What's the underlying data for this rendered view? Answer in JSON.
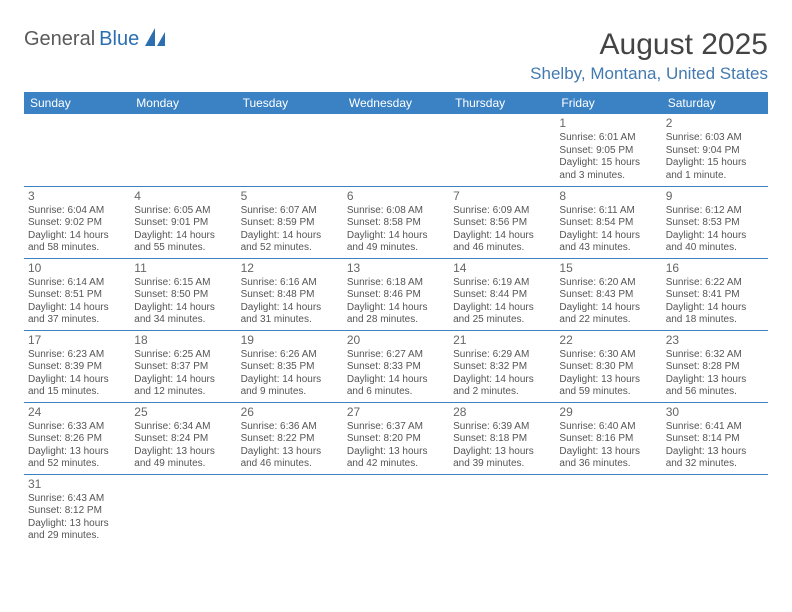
{
  "logo": {
    "general": "General",
    "blue": "Blue"
  },
  "title": "August 2025",
  "location": "Shelby, Montana, United States",
  "colors": {
    "headerBg": "#3b82c4",
    "headerText": "#ffffff",
    "rule": "#3b82c4",
    "text": "#555555",
    "title": "#444444",
    "locationColor": "#447ab0"
  },
  "dayHeaders": [
    "Sunday",
    "Monday",
    "Tuesday",
    "Wednesday",
    "Thursday",
    "Friday",
    "Saturday"
  ],
  "weeks": [
    [
      null,
      null,
      null,
      null,
      null,
      {
        "n": "1",
        "sr": "Sunrise: 6:01 AM",
        "ss": "Sunset: 9:05 PM",
        "dl": "Daylight: 15 hours and 3 minutes."
      },
      {
        "n": "2",
        "sr": "Sunrise: 6:03 AM",
        "ss": "Sunset: 9:04 PM",
        "dl": "Daylight: 15 hours and 1 minute."
      }
    ],
    [
      {
        "n": "3",
        "sr": "Sunrise: 6:04 AM",
        "ss": "Sunset: 9:02 PM",
        "dl": "Daylight: 14 hours and 58 minutes."
      },
      {
        "n": "4",
        "sr": "Sunrise: 6:05 AM",
        "ss": "Sunset: 9:01 PM",
        "dl": "Daylight: 14 hours and 55 minutes."
      },
      {
        "n": "5",
        "sr": "Sunrise: 6:07 AM",
        "ss": "Sunset: 8:59 PM",
        "dl": "Daylight: 14 hours and 52 minutes."
      },
      {
        "n": "6",
        "sr": "Sunrise: 6:08 AM",
        "ss": "Sunset: 8:58 PM",
        "dl": "Daylight: 14 hours and 49 minutes."
      },
      {
        "n": "7",
        "sr": "Sunrise: 6:09 AM",
        "ss": "Sunset: 8:56 PM",
        "dl": "Daylight: 14 hours and 46 minutes."
      },
      {
        "n": "8",
        "sr": "Sunrise: 6:11 AM",
        "ss": "Sunset: 8:54 PM",
        "dl": "Daylight: 14 hours and 43 minutes."
      },
      {
        "n": "9",
        "sr": "Sunrise: 6:12 AM",
        "ss": "Sunset: 8:53 PM",
        "dl": "Daylight: 14 hours and 40 minutes."
      }
    ],
    [
      {
        "n": "10",
        "sr": "Sunrise: 6:14 AM",
        "ss": "Sunset: 8:51 PM",
        "dl": "Daylight: 14 hours and 37 minutes."
      },
      {
        "n": "11",
        "sr": "Sunrise: 6:15 AM",
        "ss": "Sunset: 8:50 PM",
        "dl": "Daylight: 14 hours and 34 minutes."
      },
      {
        "n": "12",
        "sr": "Sunrise: 6:16 AM",
        "ss": "Sunset: 8:48 PM",
        "dl": "Daylight: 14 hours and 31 minutes."
      },
      {
        "n": "13",
        "sr": "Sunrise: 6:18 AM",
        "ss": "Sunset: 8:46 PM",
        "dl": "Daylight: 14 hours and 28 minutes."
      },
      {
        "n": "14",
        "sr": "Sunrise: 6:19 AM",
        "ss": "Sunset: 8:44 PM",
        "dl": "Daylight: 14 hours and 25 minutes."
      },
      {
        "n": "15",
        "sr": "Sunrise: 6:20 AM",
        "ss": "Sunset: 8:43 PM",
        "dl": "Daylight: 14 hours and 22 minutes."
      },
      {
        "n": "16",
        "sr": "Sunrise: 6:22 AM",
        "ss": "Sunset: 8:41 PM",
        "dl": "Daylight: 14 hours and 18 minutes."
      }
    ],
    [
      {
        "n": "17",
        "sr": "Sunrise: 6:23 AM",
        "ss": "Sunset: 8:39 PM",
        "dl": "Daylight: 14 hours and 15 minutes."
      },
      {
        "n": "18",
        "sr": "Sunrise: 6:25 AM",
        "ss": "Sunset: 8:37 PM",
        "dl": "Daylight: 14 hours and 12 minutes."
      },
      {
        "n": "19",
        "sr": "Sunrise: 6:26 AM",
        "ss": "Sunset: 8:35 PM",
        "dl": "Daylight: 14 hours and 9 minutes."
      },
      {
        "n": "20",
        "sr": "Sunrise: 6:27 AM",
        "ss": "Sunset: 8:33 PM",
        "dl": "Daylight: 14 hours and 6 minutes."
      },
      {
        "n": "21",
        "sr": "Sunrise: 6:29 AM",
        "ss": "Sunset: 8:32 PM",
        "dl": "Daylight: 14 hours and 2 minutes."
      },
      {
        "n": "22",
        "sr": "Sunrise: 6:30 AM",
        "ss": "Sunset: 8:30 PM",
        "dl": "Daylight: 13 hours and 59 minutes."
      },
      {
        "n": "23",
        "sr": "Sunrise: 6:32 AM",
        "ss": "Sunset: 8:28 PM",
        "dl": "Daylight: 13 hours and 56 minutes."
      }
    ],
    [
      {
        "n": "24",
        "sr": "Sunrise: 6:33 AM",
        "ss": "Sunset: 8:26 PM",
        "dl": "Daylight: 13 hours and 52 minutes."
      },
      {
        "n": "25",
        "sr": "Sunrise: 6:34 AM",
        "ss": "Sunset: 8:24 PM",
        "dl": "Daylight: 13 hours and 49 minutes."
      },
      {
        "n": "26",
        "sr": "Sunrise: 6:36 AM",
        "ss": "Sunset: 8:22 PM",
        "dl": "Daylight: 13 hours and 46 minutes."
      },
      {
        "n": "27",
        "sr": "Sunrise: 6:37 AM",
        "ss": "Sunset: 8:20 PM",
        "dl": "Daylight: 13 hours and 42 minutes."
      },
      {
        "n": "28",
        "sr": "Sunrise: 6:39 AM",
        "ss": "Sunset: 8:18 PM",
        "dl": "Daylight: 13 hours and 39 minutes."
      },
      {
        "n": "29",
        "sr": "Sunrise: 6:40 AM",
        "ss": "Sunset: 8:16 PM",
        "dl": "Daylight: 13 hours and 36 minutes."
      },
      {
        "n": "30",
        "sr": "Sunrise: 6:41 AM",
        "ss": "Sunset: 8:14 PM",
        "dl": "Daylight: 13 hours and 32 minutes."
      }
    ],
    [
      {
        "n": "31",
        "sr": "Sunrise: 6:43 AM",
        "ss": "Sunset: 8:12 PM",
        "dl": "Daylight: 13 hours and 29 minutes."
      },
      null,
      null,
      null,
      null,
      null,
      null
    ]
  ]
}
